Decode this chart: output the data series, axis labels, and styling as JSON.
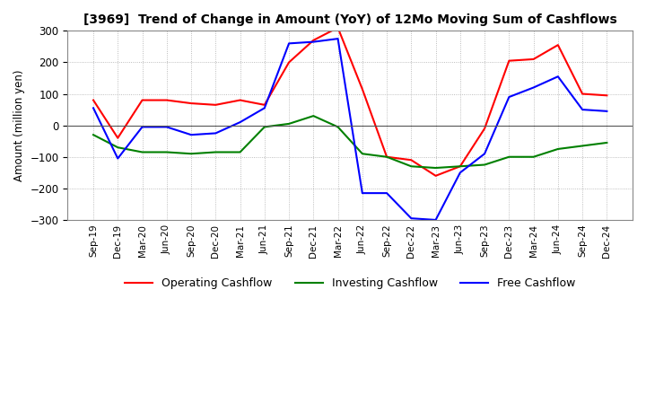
{
  "title": "[3969]  Trend of Change in Amount (YoY) of 12Mo Moving Sum of Cashflows",
  "ylabel": "Amount (million yen)",
  "ylim": [
    -300,
    300
  ],
  "yticks": [
    -300,
    -200,
    -100,
    0,
    100,
    200,
    300
  ],
  "x_labels": [
    "Sep-19",
    "Dec-19",
    "Mar-20",
    "Jun-20",
    "Sep-20",
    "Dec-20",
    "Mar-21",
    "Jun-21",
    "Sep-21",
    "Dec-21",
    "Mar-22",
    "Jun-22",
    "Sep-22",
    "Dec-22",
    "Mar-23",
    "Jun-23",
    "Sep-23",
    "Dec-23",
    "Mar-24",
    "Jun-24",
    "Sep-24",
    "Dec-24"
  ],
  "operating": [
    80,
    -40,
    80,
    80,
    70,
    65,
    80,
    65,
    200,
    270,
    310,
    115,
    -100,
    -110,
    -160,
    -130,
    -10,
    205,
    210,
    255,
    100,
    95
  ],
  "investing": [
    -30,
    -70,
    -85,
    -85,
    -90,
    -85,
    -85,
    -5,
    5,
    30,
    -5,
    -90,
    -100,
    -130,
    -135,
    -130,
    -125,
    -100,
    -100,
    -75,
    -65,
    -55
  ],
  "free": [
    55,
    -105,
    -5,
    -5,
    -30,
    -25,
    10,
    55,
    260,
    265,
    275,
    -215,
    -215,
    -295,
    -300,
    -150,
    -90,
    90,
    120,
    155,
    50,
    45
  ],
  "colors": {
    "operating": "#ff0000",
    "investing": "#008000",
    "free": "#0000ff"
  },
  "legend_labels": [
    "Operating Cashflow",
    "Investing Cashflow",
    "Free Cashflow"
  ],
  "background_color": "#ffffff",
  "grid_color": "#aaaaaa"
}
